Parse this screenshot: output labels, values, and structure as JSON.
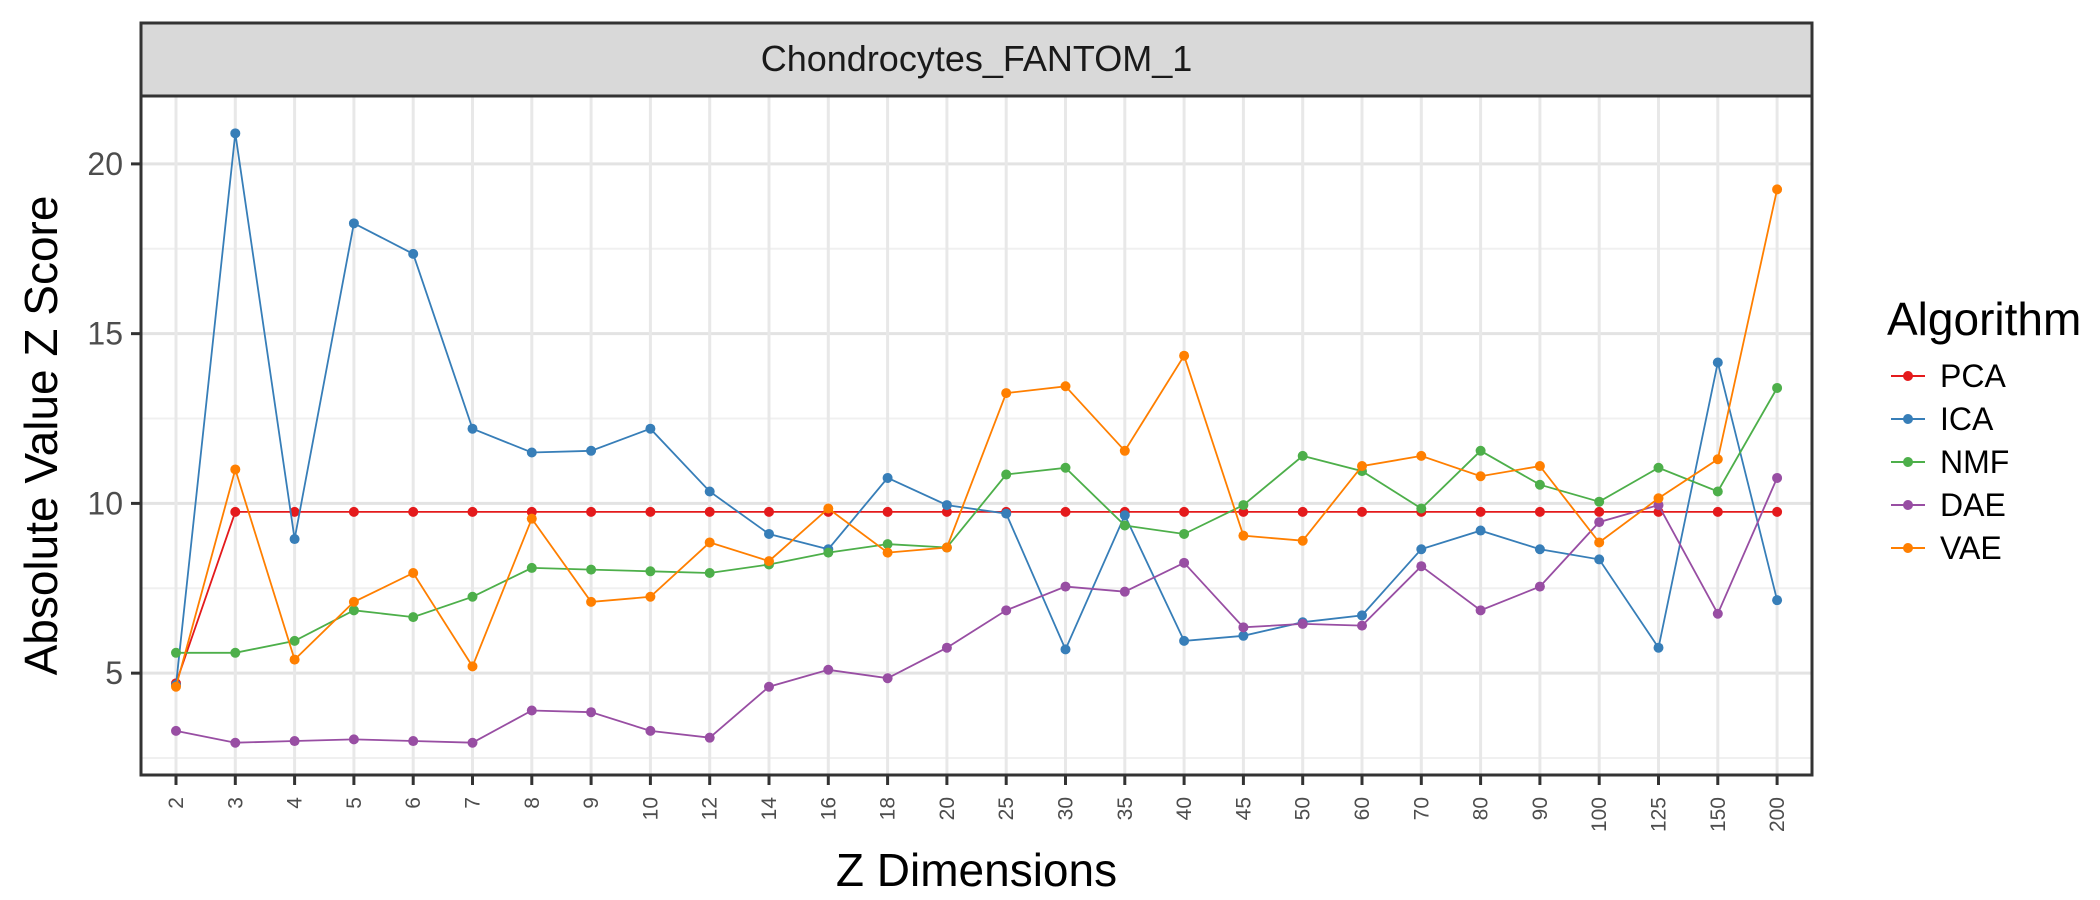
{
  "chart_data": {
    "type": "line",
    "title": "Chondrocytes_FANTOM_1",
    "xlabel": "Z Dimensions",
    "ylabel": "Absolute Value Z Score",
    "categories": [
      "2",
      "3",
      "4",
      "5",
      "6",
      "7",
      "8",
      "9",
      "10",
      "12",
      "14",
      "16",
      "18",
      "20",
      "25",
      "30",
      "35",
      "40",
      "45",
      "50",
      "60",
      "70",
      "80",
      "90",
      "100",
      "125",
      "150",
      "200"
    ],
    "ylim": [
      2,
      22
    ],
    "yticks": [
      5,
      10,
      15,
      20
    ],
    "grid": true,
    "legend": {
      "title": "Algorithm",
      "placement": "right"
    },
    "series": [
      {
        "name": "PCA",
        "color": "#e41a1c",
        "values": [
          4.7,
          9.75,
          9.75,
          9.75,
          9.75,
          9.75,
          9.75,
          9.75,
          9.75,
          9.75,
          9.75,
          9.75,
          9.75,
          9.75,
          9.75,
          9.75,
          9.75,
          9.75,
          9.75,
          9.75,
          9.75,
          9.75,
          9.75,
          9.75,
          9.75,
          9.75,
          9.75,
          9.75
        ]
      },
      {
        "name": "ICA",
        "color": "#377eb8",
        "values": [
          4.65,
          20.9,
          8.95,
          18.25,
          17.35,
          12.2,
          11.5,
          11.55,
          12.2,
          10.35,
          9.1,
          8.65,
          10.75,
          9.95,
          9.7,
          5.7,
          9.65,
          5.95,
          6.1,
          6.5,
          6.7,
          8.65,
          9.2,
          8.65,
          8.35,
          5.75,
          14.15,
          7.15
        ]
      },
      {
        "name": "NMF",
        "color": "#4daf4a",
        "values": [
          5.6,
          5.6,
          5.95,
          6.85,
          6.65,
          7.25,
          8.1,
          8.05,
          8.0,
          7.95,
          8.2,
          8.55,
          8.8,
          8.7,
          10.85,
          11.05,
          9.35,
          9.1,
          9.95,
          11.4,
          10.95,
          9.85,
          11.55,
          10.55,
          10.05,
          11.05,
          10.35,
          13.4
        ]
      },
      {
        "name": "DAE",
        "color": "#984ea3",
        "values": [
          3.3,
          2.95,
          3.0,
          3.05,
          3.0,
          2.95,
          3.9,
          3.85,
          3.3,
          3.1,
          4.6,
          5.1,
          4.85,
          5.75,
          6.85,
          7.55,
          7.4,
          8.25,
          6.35,
          6.45,
          6.4,
          8.15,
          6.85,
          7.55,
          9.45,
          9.95,
          6.75,
          10.75
        ]
      },
      {
        "name": "VAE",
        "color": "#ff7f00",
        "values": [
          4.6,
          11.0,
          5.4,
          7.1,
          7.95,
          5.2,
          9.55,
          7.1,
          7.25,
          8.85,
          8.3,
          9.85,
          8.55,
          8.7,
          13.25,
          13.45,
          11.55,
          14.35,
          9.05,
          8.9,
          11.1,
          11.4,
          10.8,
          11.1,
          8.85,
          10.15,
          11.3,
          19.25
        ]
      }
    ]
  }
}
